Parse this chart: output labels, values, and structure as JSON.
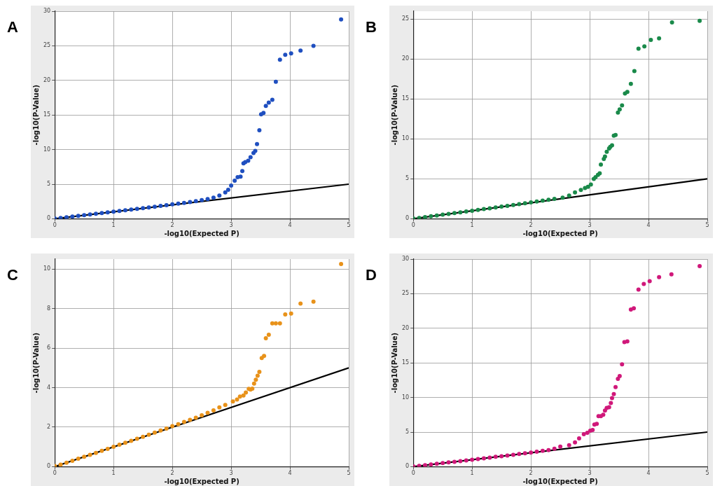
{
  "chart_data": [
    {
      "type": "scatter",
      "title": "A",
      "xlabel": "-log10(Expected P)",
      "ylabel": "-log10(P-Value)",
      "xlim": [
        0,
        5
      ],
      "xticks": [
        0,
        1,
        2,
        3,
        4,
        5
      ],
      "ylim": [
        0,
        30
      ],
      "yticks": [
        0,
        5,
        10,
        15,
        20,
        25,
        30
      ],
      "grid": true,
      "marker": "circle",
      "series": [
        {
          "color": "#1f4fc0",
          "x": [
            0,
            0.1,
            0.2,
            0.3,
            0.4,
            0.5,
            0.6,
            0.7,
            0.8,
            0.9,
            1.0,
            1.1,
            1.2,
            1.3,
            1.4,
            1.5,
            1.6,
            1.7,
            1.8,
            1.9,
            2.0,
            2.1,
            2.2,
            2.3,
            2.4,
            2.5,
            2.6,
            2.7,
            2.8,
            2.9,
            2.95,
            3.0,
            3.06,
            3.11,
            3.16,
            3.19,
            3.21,
            3.24,
            3.29,
            3.33,
            3.38,
            3.41,
            3.44,
            3.48,
            3.51,
            3.55,
            3.59,
            3.64,
            3.7,
            3.76,
            3.83,
            3.92,
            4.02,
            4.18,
            4.4,
            4.87
          ],
          "values": [
            0.05,
            0.12,
            0.22,
            0.33,
            0.43,
            0.52,
            0.62,
            0.72,
            0.83,
            0.93,
            1.03,
            1.13,
            1.23,
            1.33,
            1.43,
            1.53,
            1.63,
            1.74,
            1.85,
            1.96,
            2.08,
            2.19,
            2.3,
            2.42,
            2.55,
            2.7,
            2.86,
            3.05,
            3.35,
            3.8,
            4.2,
            4.8,
            5.5,
            6.0,
            6.1,
            6.9,
            8.0,
            8.2,
            8.4,
            8.9,
            9.5,
            9.8,
            10.8,
            12.8,
            15.1,
            15.3,
            16.3,
            16.8,
            17.2,
            19.8,
            23.0,
            23.7,
            23.9,
            24.3,
            25.0,
            28.8
          ]
        },
        {
          "type": "line",
          "color": "#000000",
          "marker": "none",
          "x": [
            0,
            5
          ],
          "values": [
            0,
            5
          ]
        }
      ]
    },
    {
      "type": "scatter",
      "title": "B",
      "xlabel": "-log10(Expected P)",
      "ylabel": "-log10(P-Value)",
      "xlim": [
        0,
        5
      ],
      "xticks": [
        0,
        1,
        2,
        3,
        4,
        5
      ],
      "ylim": [
        0,
        26
      ],
      "yticks": [
        0,
        5,
        10,
        15,
        20,
        25
      ],
      "grid": true,
      "marker": "circle",
      "series": [
        {
          "color": "#1a8a4a",
          "x": [
            0,
            0.1,
            0.2,
            0.3,
            0.4,
            0.5,
            0.6,
            0.7,
            0.8,
            0.9,
            1.0,
            1.1,
            1.2,
            1.3,
            1.4,
            1.5,
            1.6,
            1.7,
            1.8,
            1.9,
            2.0,
            2.1,
            2.2,
            2.3,
            2.4,
            2.54,
            2.65,
            2.75,
            2.85,
            2.92,
            2.97,
            3.02,
            3.07,
            3.1,
            3.14,
            3.17,
            3.19,
            3.24,
            3.26,
            3.29,
            3.33,
            3.35,
            3.38,
            3.41,
            3.44,
            3.48,
            3.51,
            3.55,
            3.6,
            3.64,
            3.7,
            3.76,
            3.83,
            3.93,
            4.04,
            4.18,
            4.4,
            4.87
          ],
          "values": [
            0.04,
            0.11,
            0.21,
            0.31,
            0.41,
            0.51,
            0.61,
            0.71,
            0.81,
            0.91,
            1.01,
            1.11,
            1.21,
            1.31,
            1.42,
            1.52,
            1.62,
            1.72,
            1.83,
            1.94,
            2.05,
            2.16,
            2.27,
            2.38,
            2.5,
            2.65,
            2.9,
            3.3,
            3.6,
            3.85,
            4.0,
            4.3,
            5.0,
            5.2,
            5.5,
            5.7,
            6.8,
            7.5,
            7.8,
            8.4,
            8.8,
            9.0,
            9.2,
            10.4,
            10.5,
            13.3,
            13.7,
            14.2,
            15.7,
            15.9,
            16.9,
            18.5,
            21.3,
            21.6,
            22.4,
            22.6,
            24.6,
            24.8
          ]
        },
        {
          "type": "line",
          "color": "#000000",
          "marker": "none",
          "x": [
            0,
            5
          ],
          "values": [
            0,
            5
          ]
        }
      ]
    },
    {
      "type": "scatter",
      "title": "C",
      "xlabel": "-log10(Expected P)",
      "ylabel": "-log10(P-Value)",
      "xlim": [
        0,
        5
      ],
      "xticks": [
        0,
        1,
        2,
        3,
        4,
        5
      ],
      "ylim": [
        0,
        10.5
      ],
      "yticks": [
        0,
        2,
        4,
        6,
        8,
        10
      ],
      "grid": true,
      "marker": "circle",
      "series": [
        {
          "color": "#e8921a",
          "x": [
            0,
            0.1,
            0.2,
            0.3,
            0.4,
            0.5,
            0.6,
            0.7,
            0.8,
            0.9,
            1.0,
            1.1,
            1.2,
            1.3,
            1.4,
            1.5,
            1.6,
            1.7,
            1.8,
            1.9,
            2.0,
            2.1,
            2.2,
            2.3,
            2.4,
            2.5,
            2.6,
            2.7,
            2.8,
            2.9,
            3.03,
            3.1,
            3.15,
            3.21,
            3.25,
            3.3,
            3.33,
            3.36,
            3.39,
            3.42,
            3.45,
            3.48,
            3.52,
            3.56,
            3.59,
            3.64,
            3.7,
            3.76,
            3.83,
            3.92,
            4.02,
            4.18,
            4.4,
            4.87
          ],
          "values": [
            0.03,
            0.1,
            0.2,
            0.3,
            0.4,
            0.5,
            0.6,
            0.7,
            0.8,
            0.9,
            1.01,
            1.11,
            1.21,
            1.31,
            1.41,
            1.51,
            1.62,
            1.72,
            1.83,
            1.93,
            2.05,
            2.15,
            2.26,
            2.37,
            2.48,
            2.6,
            2.72,
            2.85,
            3.0,
            3.12,
            3.3,
            3.4,
            3.55,
            3.6,
            3.75,
            3.94,
            3.9,
            3.95,
            4.2,
            4.4,
            4.6,
            4.8,
            5.5,
            5.6,
            6.5,
            6.67,
            7.25,
            7.25,
            7.25,
            7.7,
            7.75,
            8.25,
            8.35,
            10.25
          ]
        },
        {
          "type": "line",
          "color": "#000000",
          "marker": "none",
          "x": [
            0,
            5
          ],
          "values": [
            0,
            5
          ]
        }
      ]
    },
    {
      "type": "scatter",
      "title": "D",
      "xlabel": "-log10(Expected P)",
      "ylabel": "-log10(P-Value)",
      "xlim": [
        0,
        5
      ],
      "xticks": [
        0,
        1,
        2,
        3,
        4,
        5
      ],
      "ylim": [
        0,
        30
      ],
      "yticks": [
        0,
        5,
        10,
        15,
        20,
        25,
        30
      ],
      "grid": true,
      "marker": "circle",
      "series": [
        {
          "color": "#d0187a",
          "x": [
            0,
            0.1,
            0.2,
            0.3,
            0.4,
            0.5,
            0.6,
            0.7,
            0.8,
            0.9,
            1.0,
            1.1,
            1.2,
            1.3,
            1.4,
            1.5,
            1.6,
            1.7,
            1.8,
            1.9,
            2.0,
            2.1,
            2.2,
            2.3,
            2.4,
            2.5,
            2.65,
            2.75,
            2.82,
            2.9,
            2.96,
            3.01,
            3.05,
            3.08,
            3.12,
            3.15,
            3.19,
            3.23,
            3.26,
            3.29,
            3.33,
            3.36,
            3.38,
            3.41,
            3.44,
            3.48,
            3.51,
            3.55,
            3.59,
            3.64,
            3.7,
            3.75,
            3.83,
            3.92,
            4.02,
            4.18,
            4.39,
            4.87
          ],
          "values": [
            0.04,
            0.11,
            0.21,
            0.31,
            0.41,
            0.51,
            0.61,
            0.71,
            0.81,
            0.91,
            1.01,
            1.11,
            1.21,
            1.31,
            1.42,
            1.52,
            1.62,
            1.72,
            1.83,
            1.94,
            2.05,
            2.16,
            2.28,
            2.4,
            2.6,
            2.9,
            3.1,
            3.5,
            4.1,
            4.7,
            4.9,
            5.2,
            5.3,
            6.1,
            6.2,
            7.3,
            7.3,
            7.5,
            8.1,
            8.5,
            8.6,
            9.2,
            9.9,
            10.5,
            11.5,
            12.7,
            13.1,
            14.8,
            18.0,
            18.1,
            22.7,
            22.9,
            25.6,
            26.4,
            26.8,
            27.4,
            27.8,
            29.0
          ]
        },
        {
          "type": "line",
          "color": "#000000",
          "marker": "none",
          "x": [
            0,
            5
          ],
          "values": [
            0,
            5
          ]
        }
      ]
    }
  ]
}
